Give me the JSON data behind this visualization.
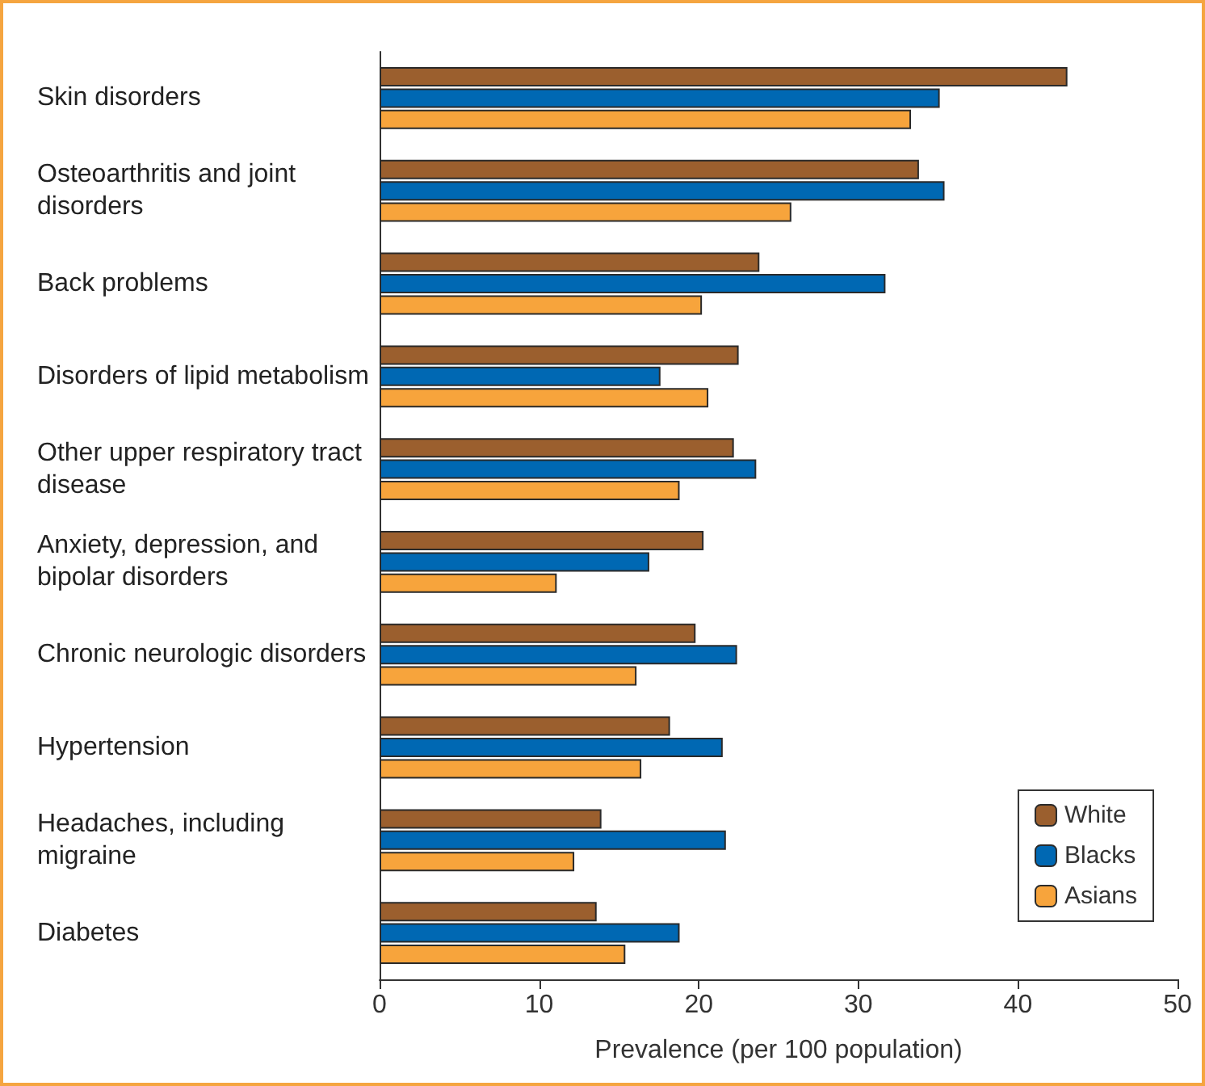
{
  "chart_data": {
    "type": "bar",
    "orientation": "horizontal",
    "xlabel": "Prevalence (per 100 population)",
    "categories": [
      "Skin disorders",
      "Osteoarthritis and joint disorders",
      "Back problems",
      "Disorders of lipid metabolism",
      "Other upper respiratory tract disease",
      "Anxiety, depression, and bipolar disorders",
      "Chronic neurologic disorders",
      "Hypertension",
      "Headaches, including migraine",
      "Diabetes"
    ],
    "series": [
      {
        "name": "White",
        "color": "#9b5f2e",
        "values": [
          43.1,
          33.8,
          23.8,
          22.5,
          22.2,
          20.3,
          19.8,
          18.2,
          13.9,
          13.6
        ]
      },
      {
        "name": "Blacks",
        "color": "#0068b3",
        "values": [
          35.1,
          35.4,
          31.7,
          17.6,
          23.6,
          16.9,
          22.4,
          21.5,
          21.7,
          18.8
        ]
      },
      {
        "name": "Asians",
        "color": "#f7a43c",
        "values": [
          33.3,
          25.8,
          20.2,
          20.6,
          18.8,
          11.1,
          16.1,
          16.4,
          12.2,
          15.4
        ]
      }
    ],
    "xlim": [
      0,
      50
    ],
    "xticks": [
      0,
      10,
      20,
      30,
      40,
      50
    ],
    "grid": false,
    "legend": "bottom right"
  }
}
